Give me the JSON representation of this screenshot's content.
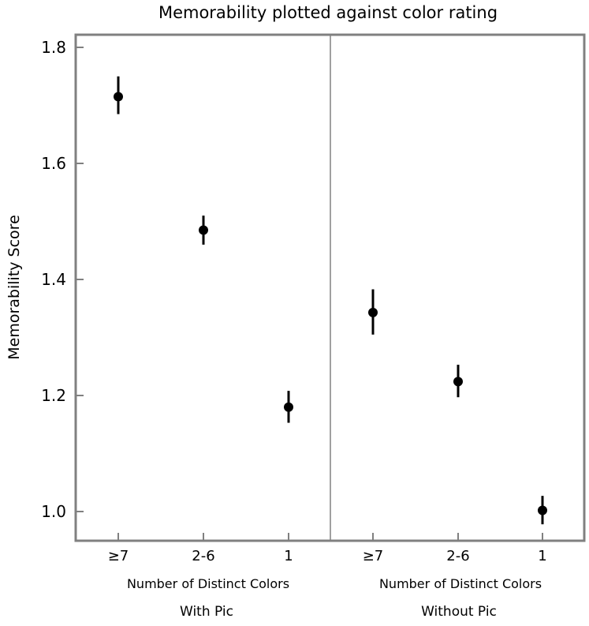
{
  "chart_data": {
    "type": "scatter",
    "title": "Memorability plotted against color rating",
    "ylabel": "Memorability Score",
    "ylim": [
      0.95,
      1.82
    ],
    "yticks": [
      1.0,
      1.2,
      1.4,
      1.6,
      1.8
    ],
    "ytick_labels": [
      "1.0",
      "1.2",
      "1.4",
      "1.6",
      "1.8"
    ],
    "grid": false,
    "legend": "none",
    "colors": {
      "frame": "#808080",
      "divider": "#808080",
      "marker": "#000000",
      "text": "#000000"
    },
    "panels": [
      {
        "label": "With Pic",
        "xlabel": "Number of Distinct Colors",
        "categories": [
          "≥7",
          "2-6",
          "1"
        ],
        "values": [
          1.715,
          1.485,
          1.18
        ],
        "error_low": [
          1.685,
          1.46,
          1.153
        ],
        "error_high": [
          1.75,
          1.51,
          1.208
        ]
      },
      {
        "label": "Without Pic",
        "xlabel": "Number of Distinct Colors",
        "categories": [
          "≥7",
          "2-6",
          "1"
        ],
        "values": [
          1.343,
          1.224,
          1.002
        ],
        "error_low": [
          1.305,
          1.197,
          0.978
        ],
        "error_high": [
          1.383,
          1.253,
          1.027
        ]
      }
    ]
  }
}
